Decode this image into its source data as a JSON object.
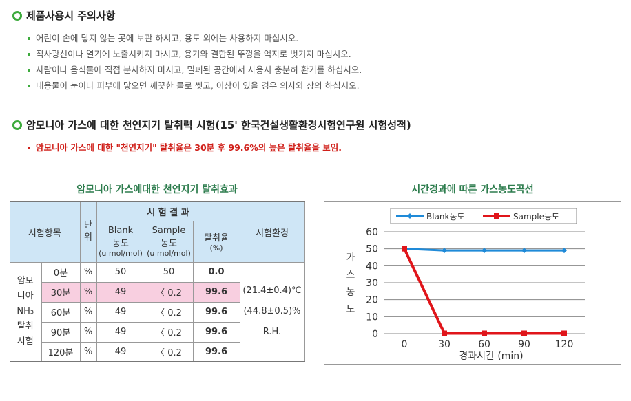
{
  "precautions": {
    "title": "제품사용시 주의사항",
    "items": [
      "어린이 손에 닿지 않는 곳에 보관 하시고, 용도 외에는 사용하지 마십시오.",
      "직사광선이나 열기에 노출시키지 마시고, 용기와 결합된 뚜껑을 억지로 벗기지 마십시오.",
      "사람이나 음식물에 직접 분사하지 마시고, 밀폐된 공간에서 사용시 충분히 환기를 하십시오.",
      "내용물이 눈이나 피부에 닿으면 깨끗한 물로 씻고, 이상이 있을 경우 의사와 상의 하십시오."
    ]
  },
  "test": {
    "title": "암모니아 가스에 대한 천연지기 탈취력 시험(15' 한국건설생활환경시험연구원 시험성적)",
    "summary": "암모니아 가스에 대한 \"천연지기\" 탈취율은 30분 후 99.6%의 높은 탈취율을 보임."
  },
  "table": {
    "caption": "암모니아 가스에대한 천연지기 탈취효과",
    "headers": {
      "item": "시험항목",
      "unit": "단위",
      "results": "시 험 결 과",
      "blank": "Blank",
      "blank2": "농도",
      "blank_unit": "(u mol/mol)",
      "sample": "Sample",
      "sample2": "농도",
      "sample_unit": "(u mol/mol)",
      "rate": "탈취율",
      "rate_unit": "(%)",
      "env": "시험환경"
    },
    "row_label": [
      "암모",
      "니아",
      "NH₃",
      "탈취",
      "시험"
    ],
    "rows": [
      {
        "time": "0분",
        "unit": "%",
        "blank": "50",
        "sample": "50",
        "rate": "0.0"
      },
      {
        "time": "30분",
        "unit": "%",
        "blank": "49",
        "sample": "〈 0.2",
        "rate": "99.6"
      },
      {
        "time": "60분",
        "unit": "%",
        "blank": "49",
        "sample": "〈 0.2",
        "rate": "99.6"
      },
      {
        "time": "90분",
        "unit": "%",
        "blank": "49",
        "sample": "〈 0.2",
        "rate": "99.6"
      },
      {
        "time": "120분",
        "unit": "%",
        "blank": "49",
        "sample": "〈 0.2",
        "rate": "99.6"
      }
    ],
    "env": [
      "(21.4±0.4)℃",
      "(44.8±0.5)%",
      "R.H."
    ]
  },
  "chart_data": {
    "type": "line",
    "title": "시간경과에 따른 가스농도곡선",
    "xlabel": "경과시간 (min)",
    "ylabel": "가스농도",
    "x": [
      0,
      30,
      60,
      90,
      120
    ],
    "ylim": [
      0,
      60
    ],
    "yticks": [
      0,
      10,
      20,
      30,
      40,
      50,
      60
    ],
    "grid": true,
    "legend": "top",
    "series": [
      {
        "name": "Blank농도",
        "values": [
          50,
          49,
          49,
          49,
          49
        ],
        "color": "#1f8ad8"
      },
      {
        "name": "Sample농도",
        "values": [
          50,
          0.2,
          0.2,
          0.2,
          0.2
        ],
        "color": "#e0151a"
      }
    ]
  }
}
